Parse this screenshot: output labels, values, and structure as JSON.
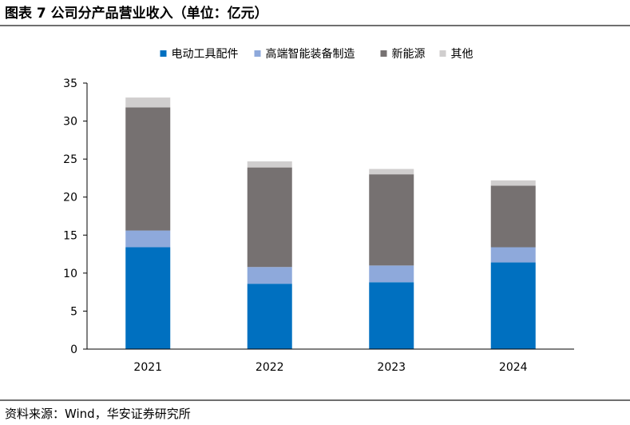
{
  "header": {
    "title": "图表 7 公司分产品营业收入（单位：亿元）"
  },
  "footer": {
    "source": "资料来源：Wind，华安证券研究所"
  },
  "chart_data": {
    "type": "bar",
    "stacked": true,
    "title": "",
    "xlabel": "",
    "ylabel": "",
    "categories": [
      "2021",
      "2022",
      "2023",
      "2024"
    ],
    "ylim": [
      0,
      35
    ],
    "yticks": [
      0,
      5,
      10,
      15,
      20,
      25,
      30,
      35
    ],
    "legend_position": "top",
    "grid": false,
    "series": [
      {
        "name": "电动工具配件",
        "color": "#0070C0",
        "values": [
          13.4,
          8.6,
          8.8,
          11.4
        ]
      },
      {
        "name": "高端智能装备制造",
        "color": "#8EA9DB",
        "values": [
          2.2,
          2.2,
          2.2,
          2.0
        ]
      },
      {
        "name": "新能源",
        "color": "#767171",
        "values": [
          16.2,
          13.1,
          12.0,
          8.1
        ]
      },
      {
        "name": "其他",
        "color": "#D0CECE",
        "values": [
          1.3,
          0.8,
          0.7,
          0.7
        ]
      }
    ]
  }
}
